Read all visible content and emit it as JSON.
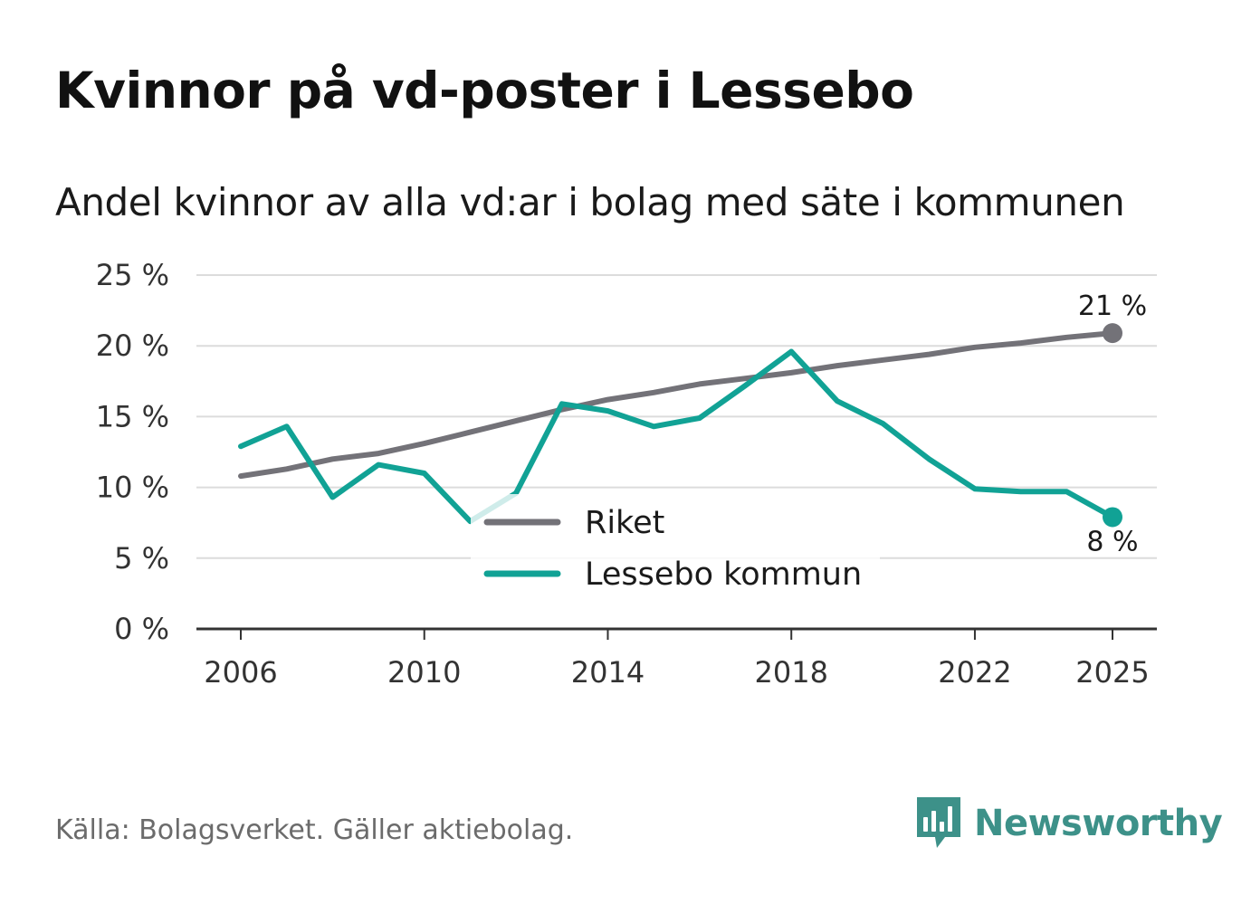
{
  "header": {
    "title": "Kvinnor på vd-poster i Lessebo",
    "subtitle": "Andel kvinnor av alla vd:ar i bolag med säte i kommunen"
  },
  "footer": {
    "source": "Källa: Bolagsverket. Gäller aktiebolag.",
    "brand_name": "Newsworthy",
    "brand_icon": "bar-chart-speech-bubble-icon"
  },
  "chart_data": {
    "type": "line",
    "x": [
      2006,
      2007,
      2008,
      2009,
      2010,
      2011,
      2012,
      2013,
      2014,
      2015,
      2016,
      2017,
      2018,
      2019,
      2020,
      2021,
      2022,
      2023,
      2024,
      2025
    ],
    "series": [
      {
        "name": "Riket",
        "color": "#737278",
        "values": [
          10.8,
          11.3,
          12.0,
          12.4,
          13.1,
          13.9,
          14.7,
          15.5,
          16.2,
          16.7,
          17.3,
          17.7,
          18.1,
          18.6,
          19.0,
          19.4,
          19.9,
          20.2,
          20.6,
          20.9
        ],
        "end_label": "21 %"
      },
      {
        "name": "Lessebo kommun",
        "color": "#11a295",
        "values": [
          12.9,
          14.3,
          9.3,
          11.6,
          11.0,
          7.6,
          9.6,
          15.9,
          15.4,
          14.3,
          14.9,
          17.2,
          19.6,
          16.1,
          14.5,
          12.0,
          9.9,
          9.7,
          9.7,
          7.9
        ],
        "end_label": "8 %"
      }
    ],
    "title": "Kvinnor på vd-poster i Lessebo",
    "xlabel": "",
    "ylabel": "",
    "ylim": [
      0,
      25
    ],
    "yticks": [
      0,
      5,
      10,
      15,
      20,
      25
    ],
    "ytick_labels": [
      "0 %",
      "5 %",
      "10 %",
      "15 %",
      "20 %",
      "25 %"
    ],
    "xticks": [
      2006,
      2010,
      2014,
      2018,
      2022,
      2025
    ],
    "xtick_labels": [
      "2006",
      "2010",
      "2014",
      "2018",
      "2022",
      "2025"
    ],
    "grid": true,
    "legend": "center"
  }
}
